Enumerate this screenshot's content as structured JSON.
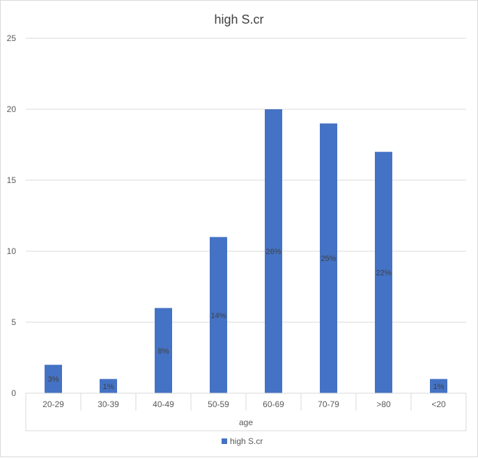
{
  "chart_data": {
    "type": "bar",
    "title": "high S.cr",
    "xlabel": "age",
    "ylabel": "",
    "categories": [
      "20-29",
      "30-39",
      "40-49",
      "50-59",
      "60-69",
      "70-79",
      ">80",
      "<20"
    ],
    "series": [
      {
        "name": "high S.cr",
        "values": [
          2,
          1,
          6,
          11,
          20,
          19,
          17,
          1
        ],
        "labels": [
          "3%",
          "1%",
          "8%",
          "14%",
          "26%",
          "25%",
          "22%",
          "1%"
        ]
      }
    ],
    "ylim": [
      0,
      25
    ],
    "yticks": [
      "0",
      "5",
      "10",
      "15",
      "20",
      "25"
    ],
    "ytick_values": [
      0,
      5,
      10,
      15,
      20,
      25
    ],
    "grid": true,
    "legend_position": "bottom",
    "colors": {
      "bar": "#4472c4",
      "grid": "#d9d9d9",
      "text": "#595959",
      "title": "#404040",
      "label": "#404040"
    }
  }
}
